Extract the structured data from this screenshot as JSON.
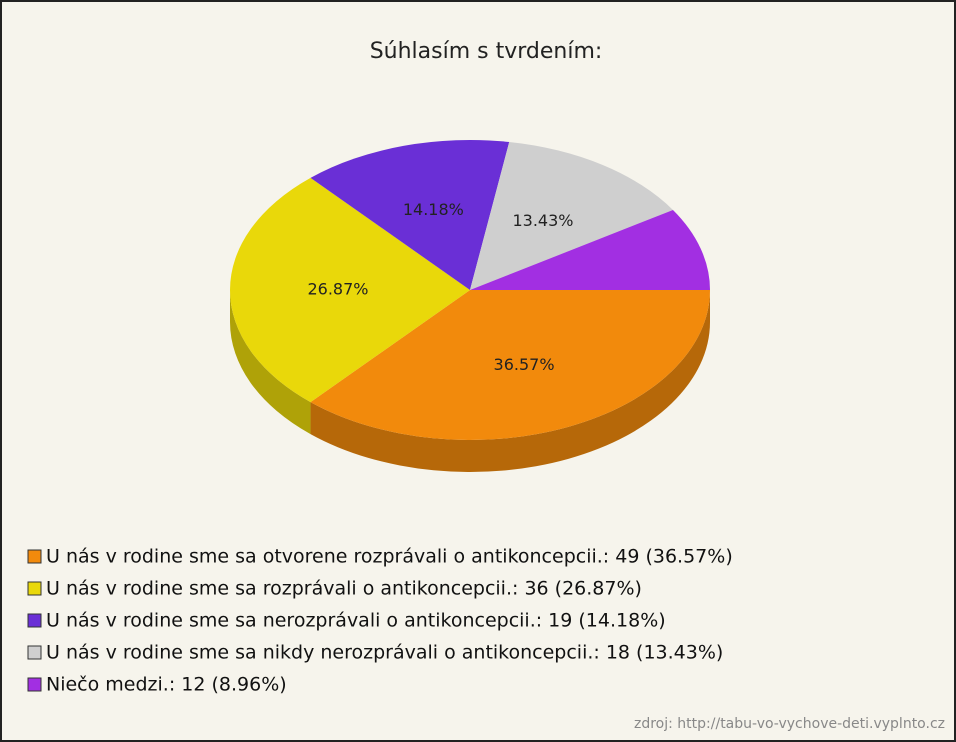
{
  "chart_data": {
    "type": "pie",
    "title": "Súhlasím s tvrdením:",
    "categories": [
      "U nás v rodine sme sa otvorene rozprávali o antikoncepcii.: 49 (36.57%)",
      "U nás v rodine sme sa rozprávali o antikoncepcii.: 36 (26.87%)",
      "U nás v rodine sme sa nerozprávali o antikoncepcii.: 19 (14.18%)",
      "U nás v rodine sme sa nikdy nerozprávali o antikoncepcii.: 18 (13.43%)",
      "Niečo medzi.: 12 (8.96%)"
    ],
    "values": [
      36.57,
      26.87,
      14.18,
      13.43,
      8.96
    ],
    "value_labels": [
      "36.57%",
      "26.87%",
      "14.18%",
      "13.43%",
      "8.96%"
    ],
    "colors": [
      "#f28a0c",
      "#e9d80a",
      "#6a2fd6",
      "#cfcfcf",
      "#a22fe2"
    ],
    "source": "zdroj: http://tabu-vo-vychove-deti.vyplnto.cz"
  }
}
